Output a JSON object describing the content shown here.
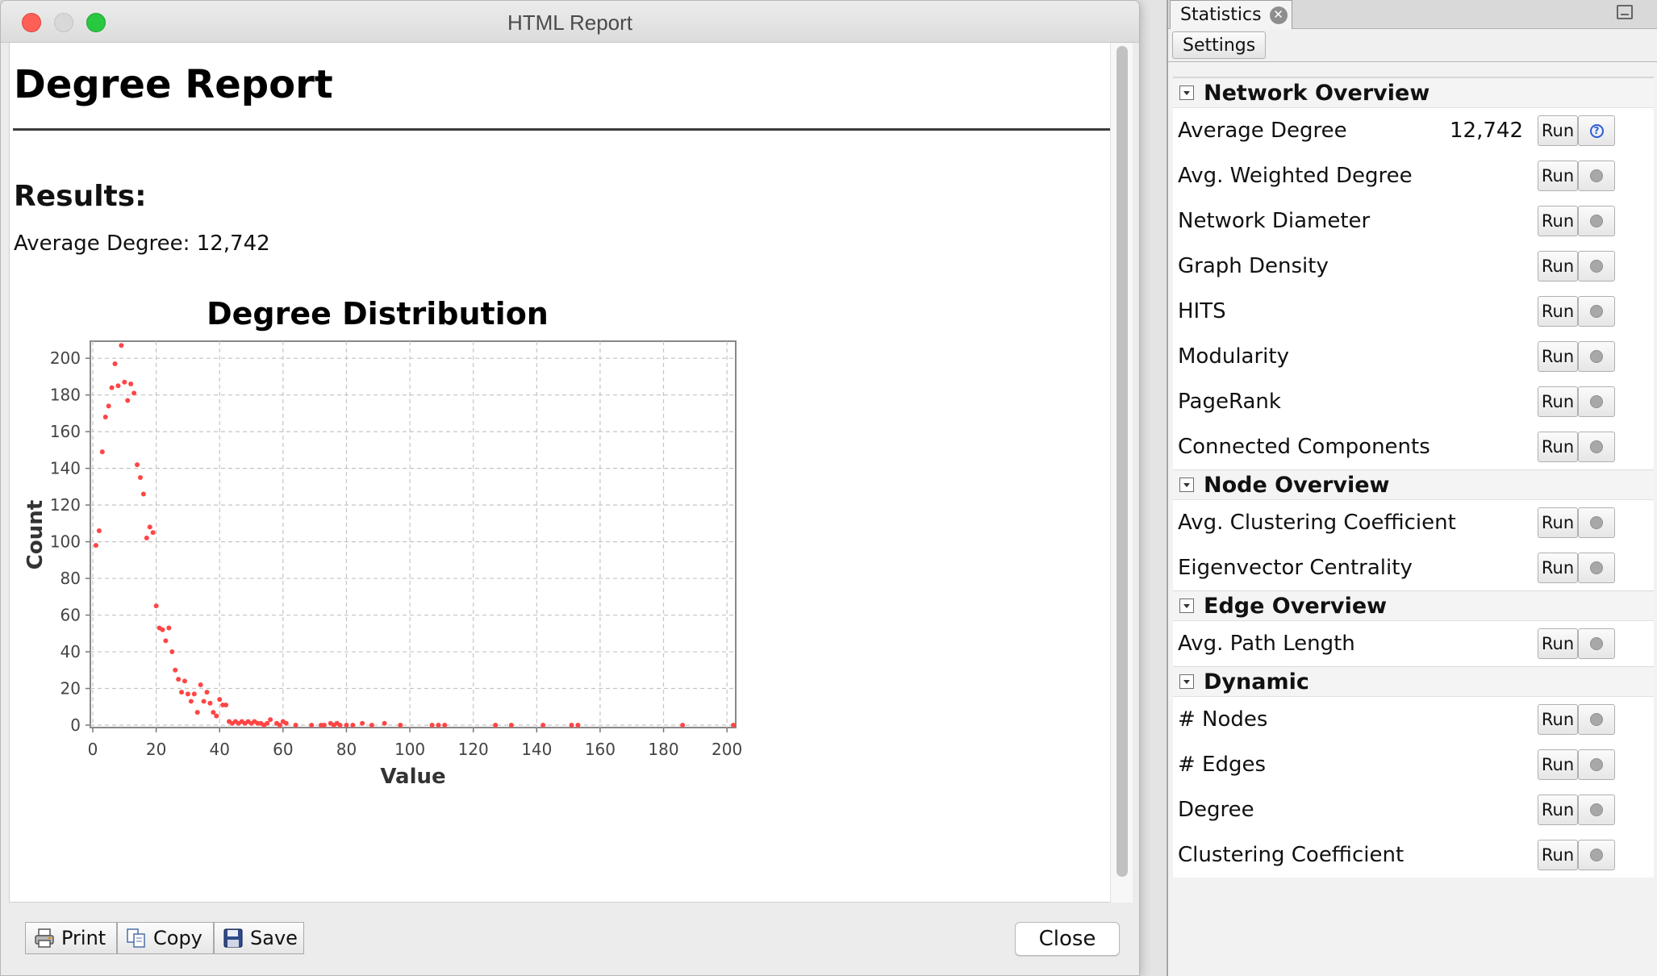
{
  "window": {
    "title": "HTML Report"
  },
  "report": {
    "title": "Degree Report",
    "results_heading": "Results:",
    "average_line": "Average Degree: 12,742"
  },
  "chart_data": {
    "type": "scatter",
    "title": "Degree Distribution",
    "xlabel": "Value",
    "ylabel": "Count",
    "xlim": [
      0,
      202
    ],
    "ylim": [
      0,
      208
    ],
    "xticks": [
      0,
      20,
      40,
      60,
      80,
      100,
      120,
      140,
      160,
      180,
      200
    ],
    "yticks": [
      0,
      20,
      40,
      60,
      80,
      100,
      120,
      140,
      160,
      180,
      200
    ],
    "grid": true,
    "color": "#ff4545",
    "points": [
      [
        1,
        98
      ],
      [
        2,
        106
      ],
      [
        3,
        149
      ],
      [
        4,
        168
      ],
      [
        5,
        174
      ],
      [
        6,
        184
      ],
      [
        7,
        197
      ],
      [
        8,
        185
      ],
      [
        9,
        207
      ],
      [
        10,
        187
      ],
      [
        11,
        177
      ],
      [
        12,
        186
      ],
      [
        13,
        181
      ],
      [
        14,
        142
      ],
      [
        15,
        135
      ],
      [
        16,
        126
      ],
      [
        17,
        102
      ],
      [
        18,
        108
      ],
      [
        19,
        105
      ],
      [
        20,
        65
      ],
      [
        21,
        53
      ],
      [
        22,
        52
      ],
      [
        23,
        46
      ],
      [
        24,
        53
      ],
      [
        25,
        40
      ],
      [
        26,
        30
      ],
      [
        27,
        25
      ],
      [
        28,
        18
      ],
      [
        29,
        24
      ],
      [
        30,
        17
      ],
      [
        31,
        13
      ],
      [
        32,
        17
      ],
      [
        33,
        7
      ],
      [
        34,
        22
      ],
      [
        35,
        13
      ],
      [
        36,
        18
      ],
      [
        37,
        12
      ],
      [
        38,
        7
      ],
      [
        39,
        5
      ],
      [
        40,
        14
      ],
      [
        41,
        11
      ],
      [
        42,
        11
      ],
      [
        43,
        2
      ],
      [
        44,
        1
      ],
      [
        45,
        2
      ],
      [
        46,
        1
      ],
      [
        47,
        2
      ],
      [
        48,
        1
      ],
      [
        49,
        2
      ],
      [
        50,
        1
      ],
      [
        51,
        2
      ],
      [
        52,
        1
      ],
      [
        53,
        1
      ],
      [
        54,
        0
      ],
      [
        55,
        1
      ],
      [
        56,
        3
      ],
      [
        58,
        1
      ],
      [
        59,
        0
      ],
      [
        60,
        2
      ],
      [
        61,
        1
      ],
      [
        64,
        0
      ],
      [
        69,
        0
      ],
      [
        72,
        0
      ],
      [
        73,
        0
      ],
      [
        75,
        1
      ],
      [
        76,
        0
      ],
      [
        77,
        1
      ],
      [
        78,
        0
      ],
      [
        80,
        0
      ],
      [
        82,
        0
      ],
      [
        85,
        1
      ],
      [
        88,
        0
      ],
      [
        92,
        1
      ],
      [
        97,
        0
      ],
      [
        107,
        0
      ],
      [
        109,
        0
      ],
      [
        111,
        0
      ],
      [
        127,
        0
      ],
      [
        132,
        0
      ],
      [
        142,
        0
      ],
      [
        151,
        0
      ],
      [
        153,
        0
      ],
      [
        186,
        0
      ],
      [
        202,
        0
      ]
    ]
  },
  "footer": {
    "print": "Print",
    "copy": "Copy",
    "save": "Save",
    "close": "Close"
  },
  "stats": {
    "tab_label": "Statistics",
    "settings_label": "Settings",
    "run_label": "Run",
    "sections": [
      {
        "title": "Network Overview",
        "rows": [
          {
            "name": "Average Degree",
            "value": "12,742",
            "info_active": true
          },
          {
            "name": "Avg. Weighted Degree",
            "value": ""
          },
          {
            "name": "Network Diameter",
            "value": ""
          },
          {
            "name": "Graph Density",
            "value": ""
          },
          {
            "name": "HITS",
            "value": ""
          },
          {
            "name": "Modularity",
            "value": ""
          },
          {
            "name": "PageRank",
            "value": ""
          },
          {
            "name": "Connected Components",
            "value": ""
          }
        ]
      },
      {
        "title": "Node Overview",
        "rows": [
          {
            "name": "Avg. Clustering Coefficient",
            "value": ""
          },
          {
            "name": "Eigenvector Centrality",
            "value": ""
          }
        ]
      },
      {
        "title": "Edge Overview",
        "rows": [
          {
            "name": "Avg. Path Length",
            "value": ""
          }
        ]
      },
      {
        "title": "Dynamic",
        "rows": [
          {
            "name": "# Nodes",
            "value": ""
          },
          {
            "name": "# Edges",
            "value": ""
          },
          {
            "name": "Degree",
            "value": ""
          },
          {
            "name": "Clustering Coefficient",
            "value": ""
          }
        ]
      }
    ]
  }
}
